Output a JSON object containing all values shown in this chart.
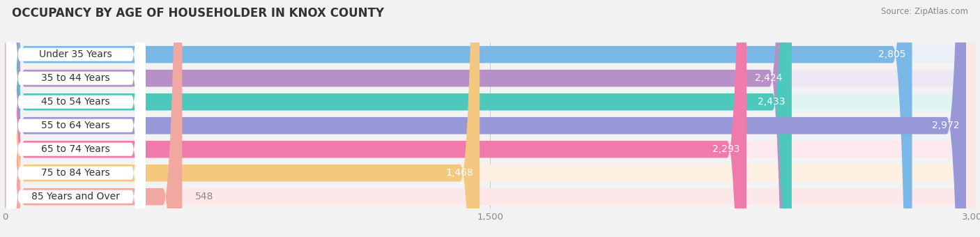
{
  "title": "OCCUPANCY BY AGE OF HOUSEHOLDER IN KNOX COUNTY",
  "source": "Source: ZipAtlas.com",
  "categories": [
    "Under 35 Years",
    "35 to 44 Years",
    "45 to 54 Years",
    "55 to 64 Years",
    "65 to 74 Years",
    "75 to 84 Years",
    "85 Years and Over"
  ],
  "values": [
    2805,
    2424,
    2433,
    2972,
    2293,
    1468,
    548
  ],
  "bar_colors": [
    "#7ab8e8",
    "#b890c8",
    "#4ec8bc",
    "#9898d8",
    "#f07aaa",
    "#f5c880",
    "#f0a8a0"
  ],
  "bar_bg_colors": [
    "#eaeff8",
    "#ede8f4",
    "#e0f5f2",
    "#eceaf8",
    "#fde8f0",
    "#fdf0e2",
    "#fce8e8"
  ],
  "xlim": [
    0,
    3000
  ],
  "xticks": [
    0,
    1500,
    3000
  ],
  "xtick_labels": [
    "0",
    "1,500",
    "3,000"
  ],
  "background_color": "#f2f2f2",
  "title_fontsize": 12,
  "label_fontsize": 10,
  "value_fontsize": 10
}
